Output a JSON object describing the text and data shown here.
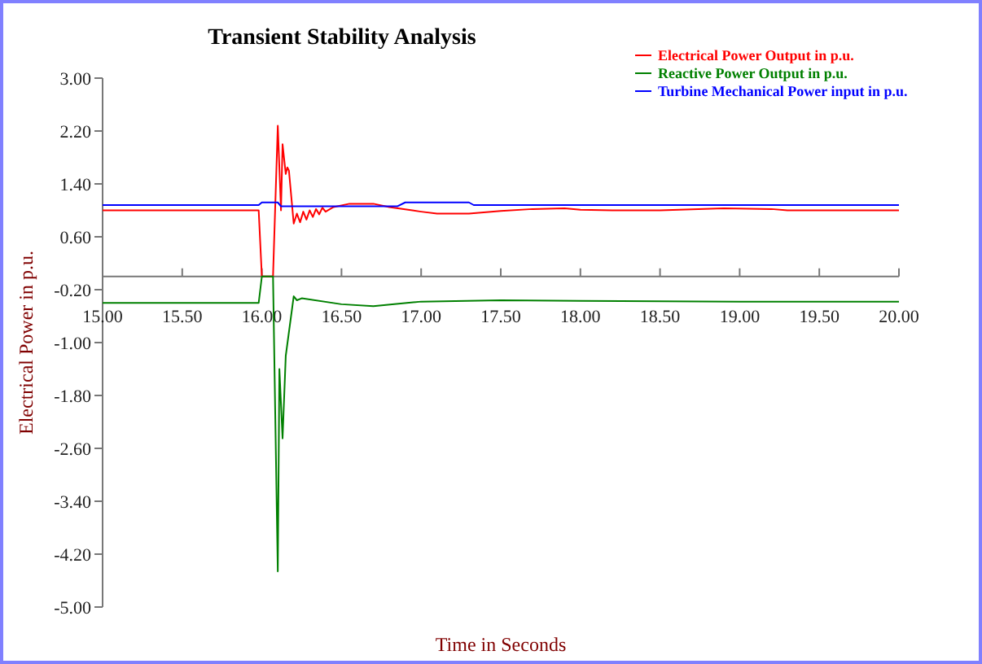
{
  "chart_data": {
    "type": "line",
    "title": "Transient Stability Analysis",
    "xlabel": "Time in Seconds",
    "ylabel": "Electrical Power in p.u.",
    "xlim": [
      15,
      20
    ],
    "ylim": [
      -5,
      3
    ],
    "xticks": [
      {
        "value": 15,
        "label": "15.00"
      },
      {
        "value": 15.5,
        "label": "15.50"
      },
      {
        "value": 16,
        "label": "16.00"
      },
      {
        "value": 16.5,
        "label": "16.50"
      },
      {
        "value": 17,
        "label": "17.00"
      },
      {
        "value": 17.5,
        "label": "17.50"
      },
      {
        "value": 18,
        "label": "18.00"
      },
      {
        "value": 18.5,
        "label": "18.50"
      },
      {
        "value": 19,
        "label": "19.00"
      },
      {
        "value": 19.5,
        "label": "19.50"
      },
      {
        "value": 20,
        "label": "20.00"
      }
    ],
    "yticks": [
      {
        "value": 3,
        "label": "3.00"
      },
      {
        "value": 2.2,
        "label": "2.20"
      },
      {
        "value": 1.4,
        "label": "1.40"
      },
      {
        "value": 0.6,
        "label": "0.60"
      },
      {
        "value": -0.2,
        "label": "-0.20"
      },
      {
        "value": -1,
        "label": "-1.00"
      },
      {
        "value": -1.8,
        "label": "-1.80"
      },
      {
        "value": -2.6,
        "label": "-2.60"
      },
      {
        "value": -3.4,
        "label": "-3.40"
      },
      {
        "value": -4.2,
        "label": "-4.20"
      },
      {
        "value": -5,
        "label": "-5.00"
      }
    ],
    "grid": false,
    "legend": "top right",
    "marker": "none",
    "line_style": "solid",
    "series": [
      {
        "name": "Electrical Power Output in p.u.",
        "color": "#ff0000",
        "x": [
          15,
          15.98,
          16.0,
          16.07,
          16.1,
          16.12,
          16.13,
          16.15,
          16.16,
          16.17,
          16.2,
          16.22,
          16.24,
          16.26,
          16.28,
          16.3,
          16.32,
          16.34,
          16.36,
          16.38,
          16.4,
          16.45,
          16.55,
          16.7,
          16.8,
          17.0,
          17.1,
          17.3,
          17.5,
          17.7,
          17.9,
          18.0,
          18.2,
          18.5,
          18.9,
          19.2,
          19.3,
          19.6,
          20
        ],
        "values": [
          1.0,
          1.0,
          0,
          0,
          2.28,
          1.0,
          2.0,
          1.55,
          1.65,
          1.6,
          0.8,
          0.95,
          0.82,
          0.98,
          0.86,
          1.0,
          0.9,
          1.02,
          0.94,
          1.04,
          0.98,
          1.05,
          1.1,
          1.1,
          1.05,
          0.98,
          0.95,
          0.95,
          0.99,
          1.02,
          1.03,
          1.01,
          1.0,
          1.0,
          1.03,
          1.02,
          1.0,
          1.0,
          1.0
        ]
      },
      {
        "name": "Reactive Power Output in p.u.",
        "color": "#008000",
        "x": [
          15,
          15.98,
          16.0,
          16.07,
          16.1,
          16.11,
          16.13,
          16.15,
          16.2,
          16.22,
          16.25,
          16.5,
          16.7,
          17.0,
          17.5,
          18.0,
          19.0,
          20
        ],
        "values": [
          -0.4,
          -0.4,
          0,
          0,
          -4.46,
          -1.4,
          -2.45,
          -1.2,
          -0.3,
          -0.36,
          -0.33,
          -0.42,
          -0.45,
          -0.38,
          -0.36,
          -0.37,
          -0.38,
          -0.38
        ]
      },
      {
        "name": "Turbine Mechanical Power input in p.u.",
        "color": "#0000ff",
        "x": [
          15,
          15.98,
          16.0,
          16.1,
          16.12,
          16.5,
          16.85,
          16.9,
          17.3,
          17.33,
          20
        ],
        "values": [
          1.08,
          1.08,
          1.12,
          1.12,
          1.06,
          1.06,
          1.06,
          1.12,
          1.12,
          1.08,
          1.08
        ]
      }
    ]
  }
}
